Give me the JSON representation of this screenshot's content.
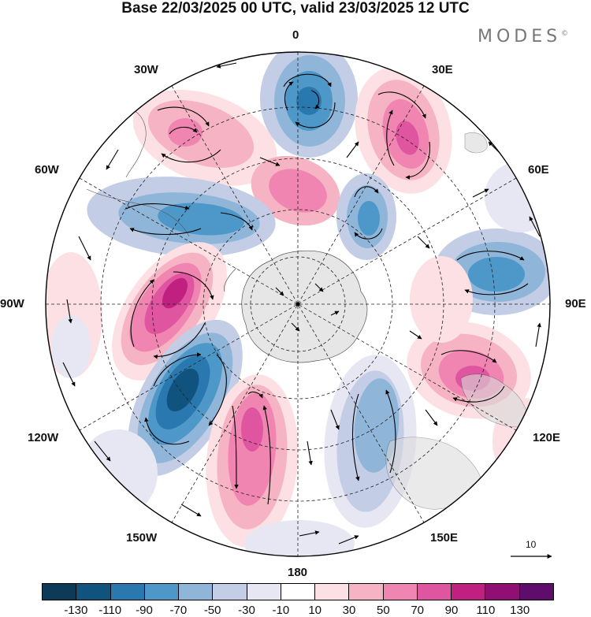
{
  "title": "Base 22/03/2025 00 UTC, valid 23/03/2025 12 UTC",
  "brand": {
    "name": "MODES",
    "mark": "©"
  },
  "longitude_labels": {
    "l0": "0",
    "l30e": "30E",
    "l60e": "60E",
    "l90e": "90E",
    "l120e": "120E",
    "l150e": "150E",
    "l180": "180",
    "l150w": "150W",
    "l120w": "120W",
    "l90w": "90W",
    "l60w": "60W",
    "l30w": "30W"
  },
  "vector_scale": {
    "label": "10"
  },
  "colorbar": {
    "colors": [
      "#0d3a56",
      "#11537f",
      "#2a78b0",
      "#4e97c9",
      "#8fb6d9",
      "#c3cde6",
      "#e7e7f3",
      "#ffffff",
      "#fde0e3",
      "#f6b3c3",
      "#f085b2",
      "#e0559f",
      "#c0207f",
      "#8f0f73",
      "#5e0d6d"
    ],
    "ticks": [
      "-130",
      "-110",
      "-90",
      "-70",
      "-50",
      "-30",
      "-10",
      "10",
      "30",
      "50",
      "70",
      "90",
      "110",
      "130"
    ]
  }
}
